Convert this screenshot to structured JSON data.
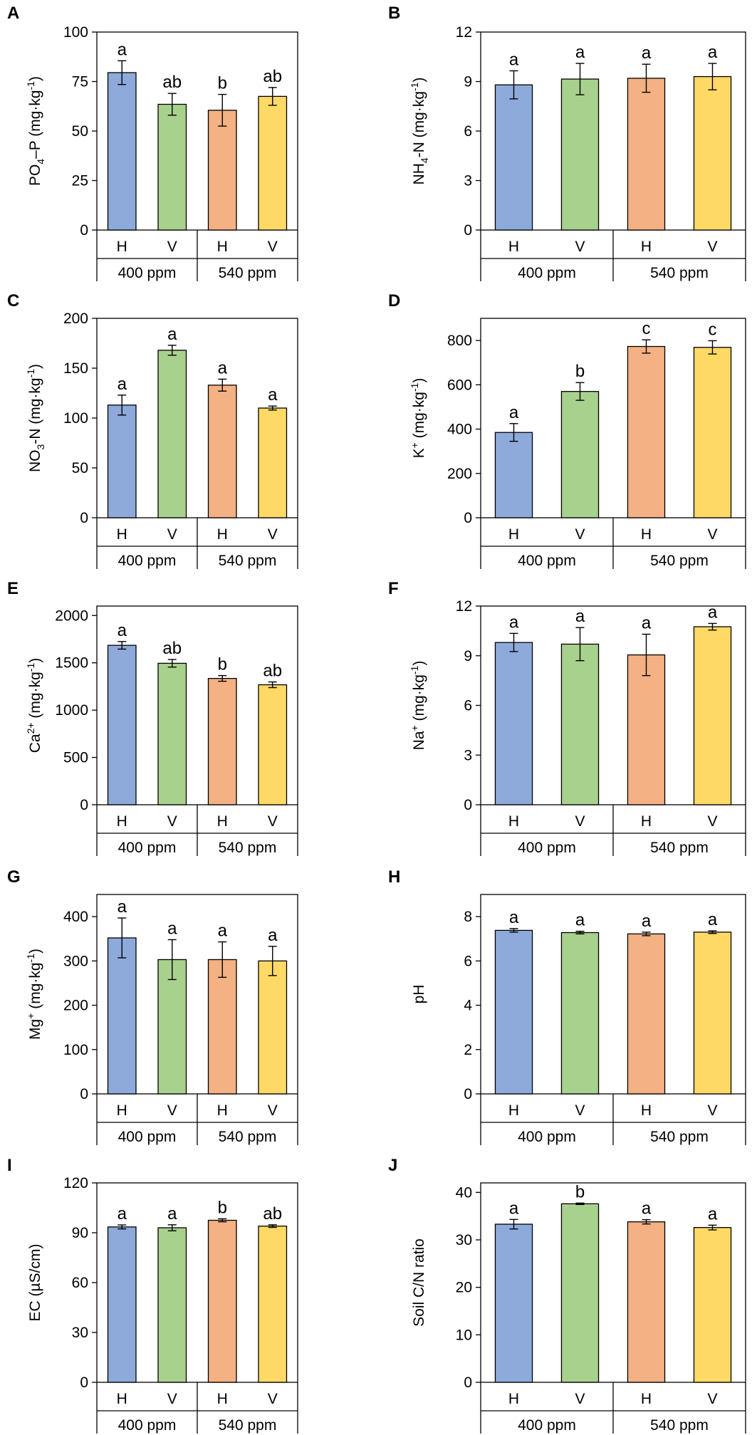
{
  "figure": {
    "group_labels": [
      "400 ppm",
      "540 ppm"
    ],
    "bar_labels": [
      "H",
      "V",
      "H",
      "V"
    ],
    "colors": [
      "#8eaadb",
      "#a9d18e",
      "#f4b183",
      "#ffd966"
    ],
    "border_color": "#000000"
  },
  "chart_data": [
    {
      "type": "bar",
      "panel": "A",
      "ylabel_html": "PO<tspan font-size='14' dy='6'>4</tspan><tspan dy='-6'>–P (mg·kg</tspan><tspan font-size='14' dy='-8'>-1</tspan><tspan dy='8'>)</tspan>",
      "categories": [
        "H",
        "V",
        "H",
        "V"
      ],
      "groups": [
        "400 ppm",
        "540 ppm"
      ],
      "values": [
        79.5,
        63.5,
        60.5,
        67.5
      ],
      "errors": [
        6,
        5.5,
        8,
        4.5
      ],
      "letters": [
        "a",
        "ab",
        "b",
        "ab"
      ],
      "ylim": [
        0,
        100
      ],
      "yticks": [
        0,
        25,
        50,
        75,
        100
      ]
    },
    {
      "type": "bar",
      "panel": "B",
      "ylabel_html": "NH<tspan font-size='14' dy='6'>4</tspan><tspan dy='-6'>-N (mg·kg</tspan><tspan font-size='14' dy='-8'>-1</tspan><tspan dy='8'>)</tspan>",
      "categories": [
        "H",
        "V",
        "H",
        "V"
      ],
      "groups": [
        "400 ppm",
        "540 ppm"
      ],
      "values": [
        8.8,
        9.15,
        9.2,
        9.3
      ],
      "errors": [
        0.85,
        0.95,
        0.85,
        0.8
      ],
      "letters": [
        "a",
        "a",
        "a",
        "a"
      ],
      "ylim": [
        0,
        12
      ],
      "yticks": [
        0,
        3,
        6,
        9,
        12
      ]
    },
    {
      "type": "bar",
      "panel": "C",
      "ylabel_html": "NO<tspan font-size='14' dy='6'>3</tspan><tspan dy='-6'>-N (mg·kg</tspan><tspan font-size='14' dy='-8'>-1</tspan><tspan dy='8'>)</tspan>",
      "categories": [
        "H",
        "V",
        "H",
        "V"
      ],
      "groups": [
        "400 ppm",
        "540 ppm"
      ],
      "values": [
        113,
        168,
        133,
        110
      ],
      "errors": [
        10,
        5,
        6,
        2
      ],
      "letters": [
        "a",
        "a",
        "a",
        "a"
      ],
      "ylim": [
        0,
        200
      ],
      "yticks": [
        0,
        50,
        100,
        150,
        200
      ]
    },
    {
      "type": "bar",
      "panel": "D",
      "ylabel_html": "K<tspan font-size='14' dy='-8'>+</tspan><tspan dy='8'> (mg·kg</tspan><tspan font-size='14' dy='-8'>-1</tspan><tspan dy='8'>)</tspan>",
      "categories": [
        "H",
        "V",
        "H",
        "V"
      ],
      "groups": [
        "400 ppm",
        "540 ppm"
      ],
      "values": [
        385,
        570,
        773,
        769
      ],
      "errors": [
        40,
        40,
        30,
        30
      ],
      "letters": [
        "a",
        "b",
        "c",
        "c"
      ],
      "ylim": [
        0,
        900
      ],
      "yticks": [
        0,
        200,
        400,
        600,
        800
      ]
    },
    {
      "type": "bar",
      "panel": "E",
      "ylabel_html": "Ca<tspan font-size='14' dy='-8'>2+</tspan><tspan dy='8'> (mg·kg</tspan><tspan font-size='14' dy='-8'>-1</tspan><tspan dy='8'>)</tspan>",
      "categories": [
        "H",
        "V",
        "H",
        "V"
      ],
      "groups": [
        "400 ppm",
        "540 ppm"
      ],
      "values": [
        1685,
        1495,
        1335,
        1268
      ],
      "errors": [
        40,
        40,
        30,
        30
      ],
      "letters": [
        "a",
        "ab",
        "b",
        "ab"
      ],
      "ylim": [
        0,
        2100
      ],
      "yticks": [
        0,
        500,
        1000,
        1500,
        2000
      ]
    },
    {
      "type": "bar",
      "panel": "F",
      "ylabel_html": "Na<tspan font-size='14' dy='-8'>+</tspan><tspan dy='8'> (mg·kg</tspan><tspan font-size='14' dy='-8'>-1</tspan><tspan dy='8'>)</tspan>",
      "categories": [
        "H",
        "V",
        "H",
        "V"
      ],
      "groups": [
        "400 ppm",
        "540 ppm"
      ],
      "values": [
        9.8,
        9.7,
        9.05,
        10.75
      ],
      "errors": [
        0.55,
        1.0,
        1.25,
        0.2
      ],
      "letters": [
        "a",
        "a",
        "a",
        "a"
      ],
      "ylim": [
        0,
        12
      ],
      "yticks": [
        0,
        3,
        6,
        9,
        12
      ]
    },
    {
      "type": "bar",
      "panel": "G",
      "ylabel_html": "Mg<tspan font-size='14' dy='-8'>+</tspan><tspan dy='8'> (mg·kg</tspan><tspan font-size='14' dy='-8'>-1</tspan><tspan dy='8'>)</tspan>",
      "categories": [
        "H",
        "V",
        "H",
        "V"
      ],
      "groups": [
        "400 ppm",
        "540 ppm"
      ],
      "values": [
        352,
        303,
        303,
        300
      ],
      "errors": [
        45,
        45,
        40,
        33
      ],
      "letters": [
        "a",
        "a",
        "a",
        "a"
      ],
      "ylim": [
        0,
        450
      ],
      "yticks": [
        0,
        100,
        200,
        300,
        400
      ]
    },
    {
      "type": "bar",
      "panel": "H",
      "ylabel_html": "pH",
      "categories": [
        "H",
        "V",
        "H",
        "V"
      ],
      "groups": [
        "400 ppm",
        "540 ppm"
      ],
      "values": [
        7.38,
        7.28,
        7.22,
        7.3
      ],
      "errors": [
        0.08,
        0.06,
        0.08,
        0.06
      ],
      "letters": [
        "a",
        "a",
        "a",
        "a"
      ],
      "ylim": [
        0,
        9
      ],
      "yticks": [
        0,
        2,
        4,
        6,
        8
      ]
    },
    {
      "type": "bar",
      "panel": "I",
      "ylabel_html": "EC (µS/cm)",
      "categories": [
        "H",
        "V",
        "H",
        "V"
      ],
      "groups": [
        "400 ppm",
        "540 ppm"
      ],
      "values": [
        93.5,
        93,
        97.5,
        94
      ],
      "errors": [
        1.2,
        1.8,
        0.9,
        0.8
      ],
      "letters": [
        "a",
        "a",
        "b",
        "ab"
      ],
      "ylim": [
        0,
        120
      ],
      "yticks": [
        0,
        30,
        60,
        90,
        120
      ]
    },
    {
      "type": "bar",
      "panel": "J",
      "ylabel_html": "Soil C/N ratio",
      "categories": [
        "H",
        "V",
        "H",
        "V"
      ],
      "groups": [
        "400 ppm",
        "540 ppm"
      ],
      "values": [
        33.3,
        37.6,
        33.8,
        32.6
      ],
      "errors": [
        1.0,
        0.15,
        0.45,
        0.5
      ],
      "letters": [
        "a",
        "b",
        "a",
        "a"
      ],
      "ylim": [
        0,
        42
      ],
      "yticks": [
        0,
        10,
        20,
        30,
        40
      ]
    }
  ]
}
